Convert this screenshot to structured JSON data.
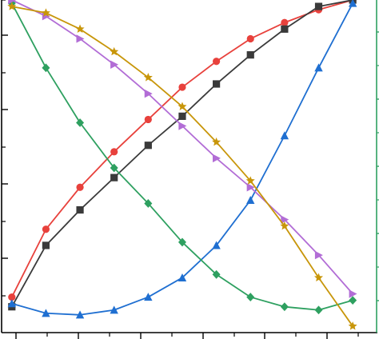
{
  "chart_data": {
    "type": "line",
    "x": [
      0,
      1,
      2,
      3,
      4,
      5,
      6,
      7,
      8,
      9,
      10
    ],
    "xlim": [
      -0.3,
      10.7
    ],
    "ylim_left": [
      -0.03,
      1.0
    ],
    "ylim_right": [
      -0.03,
      1.0
    ],
    "grid": false,
    "legend": "none",
    "series": [
      {
        "color": "#e8413c",
        "marker": "circle",
        "values": [
          0.08,
          0.29,
          0.42,
          0.53,
          0.63,
          0.73,
          0.81,
          0.88,
          0.93,
          0.97,
          1.0
        ]
      },
      {
        "color": "#3a3a3a",
        "marker": "square",
        "values": [
          0.05,
          0.24,
          0.35,
          0.45,
          0.55,
          0.64,
          0.74,
          0.83,
          0.91,
          0.98,
          1.0
        ]
      },
      {
        "color": "#1f6fd1",
        "marker": "triangle-up",
        "values": [
          0.06,
          0.03,
          0.025,
          0.04,
          0.08,
          0.14,
          0.24,
          0.38,
          0.58,
          0.79,
          0.99
        ]
      },
      {
        "color": "#2ea060",
        "marker": "diamond",
        "values": [
          0.99,
          0.79,
          0.62,
          0.48,
          0.37,
          0.25,
          0.15,
          0.08,
          0.05,
          0.04,
          0.07
        ]
      },
      {
        "color": "#b26dd6",
        "marker": "triangle-right",
        "values": [
          1.0,
          0.95,
          0.88,
          0.8,
          0.71,
          0.61,
          0.51,
          0.42,
          0.32,
          0.21,
          0.09
        ]
      },
      {
        "color": "#c8960a",
        "marker": "star",
        "values": [
          0.98,
          0.96,
          0.91,
          0.84,
          0.76,
          0.67,
          0.56,
          0.44,
          0.3,
          0.14,
          -0.01
        ]
      }
    ]
  }
}
